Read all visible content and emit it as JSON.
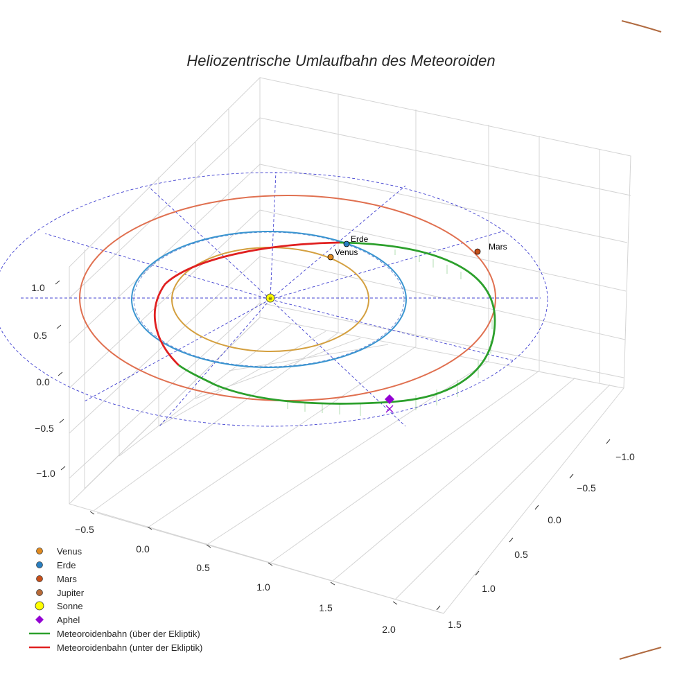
{
  "chart_data": {
    "type": "3d-line",
    "title": "Heliozentrische Umlaufbahn des Meteoroiden",
    "xlabel": "",
    "ylabel": "",
    "zlabel": "",
    "x_ticks": [
      "−0.5",
      "0.0",
      "0.5",
      "1.0",
      "1.5",
      "2.0"
    ],
    "y_ticks": [
      "−1.0",
      "−0.5",
      "0.0",
      "0.5",
      "1.0",
      "1.5"
    ],
    "z_ticks": [
      "1.0",
      "0.5",
      "0.0",
      "−0.5",
      "−1.0"
    ],
    "grid": true,
    "legend_position": "lower-left",
    "series": [
      {
        "name": "Venus",
        "kind": "orbit",
        "color": "#d4a040",
        "radius_au": 0.72,
        "planet_label": "Venus"
      },
      {
        "name": "Erde",
        "kind": "orbit",
        "color": "#3a8fd0",
        "radius_au": 1.0,
        "planet_label": "Erde"
      },
      {
        "name": "Mars",
        "kind": "orbit",
        "color": "#e07050",
        "radius_au": 1.52,
        "planet_label": "Mars"
      },
      {
        "name": "Jupiter",
        "kind": "marker",
        "color": "#b05a30"
      },
      {
        "name": "Sonne",
        "kind": "marker",
        "color": "#ffff00"
      },
      {
        "name": "Aphel",
        "kind": "marker",
        "color": "#9400d3"
      },
      {
        "name": "Meteoroidenbahn (über der Ekliptik)",
        "kind": "line",
        "color": "#2ca02c"
      },
      {
        "name": "Meteoroidenbahn (unter der Ekliptik)",
        "kind": "line",
        "color": "#e02020"
      }
    ],
    "legend": [
      {
        "label": "Venus",
        "marker": "dot",
        "color": "#e08a20"
      },
      {
        "label": "Erde",
        "marker": "dot",
        "color": "#2a7fc0"
      },
      {
        "label": "Mars",
        "marker": "dot",
        "color": "#c8501a"
      },
      {
        "label": "Jupiter",
        "marker": "dot",
        "color": "#b86a38"
      },
      {
        "label": "Sonne",
        "marker": "bigdot",
        "color": "#ffff00"
      },
      {
        "label": "Aphel",
        "marker": "diamond",
        "color": "#9400d3"
      },
      {
        "label": "Meteoroidenbahn (über der Ekliptik)",
        "marker": "line",
        "color": "#2ca02c"
      },
      {
        "label": "Meteoroidenbahn (unter der Ekliptik)",
        "marker": "line",
        "color": "#e02020"
      }
    ]
  }
}
